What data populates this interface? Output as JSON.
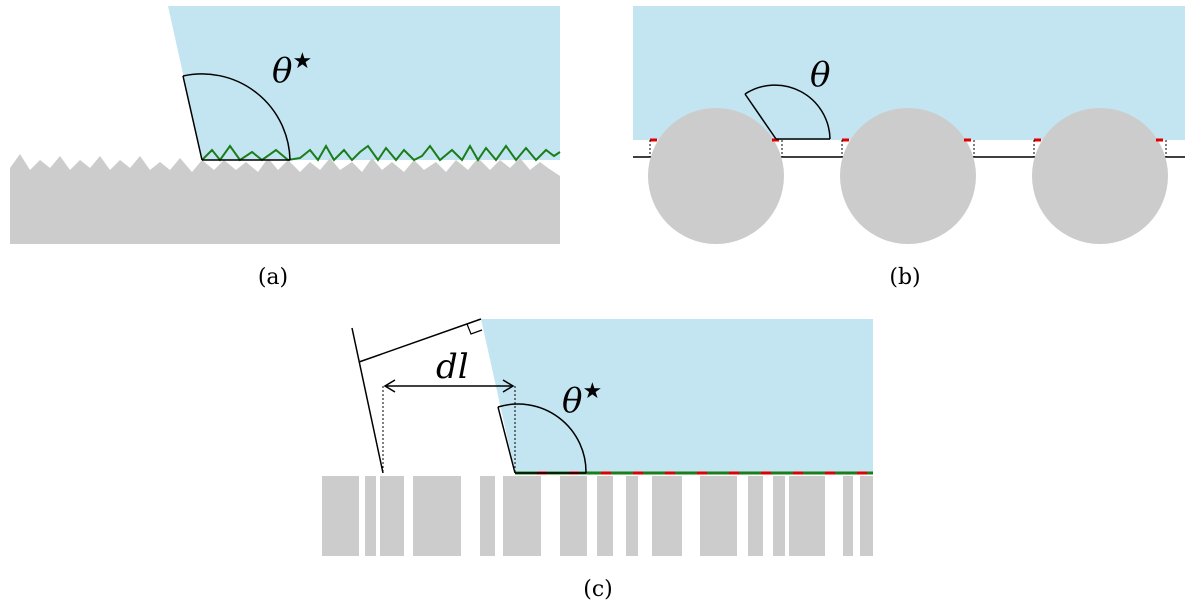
{
  "figure": {
    "panels": [
      {
        "id": "a",
        "label": "(a)",
        "angle_label": "θ",
        "angle_superscript": "★"
      },
      {
        "id": "b",
        "label": "(b)",
        "angle_label": "θ"
      },
      {
        "id": "c",
        "label": "(c)",
        "angle_label": "θ",
        "angle_superscript": "★",
        "distance_label": "dl"
      }
    ],
    "colors": {
      "liquid": "#c3e5f1",
      "solid": "#cccccc",
      "rough_interface": "#1a7d1a",
      "air_interface": "#e00000",
      "outline": "#000000"
    }
  }
}
